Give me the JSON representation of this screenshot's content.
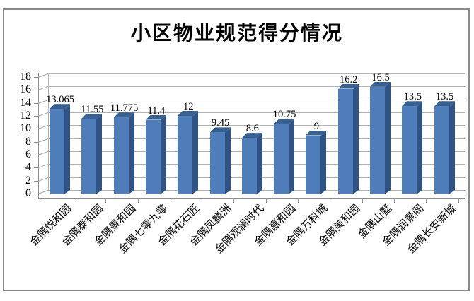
{
  "window": {
    "background_color": "#ffffff",
    "frame_border_color": "#8a8a8a"
  },
  "chart_data": {
    "type": "bar",
    "style": "3d-column",
    "title": "小区物业规范得分情况",
    "xlabel": "",
    "ylabel": "",
    "categories": [
      "金隅悦和园",
      "金隅泰和园",
      "金隅景和园",
      "金隅七零九零",
      "金隅花石匠",
      "金隅凤麟洲",
      "金隅观澜时代",
      "金隅嘉和园",
      "金隅万科城",
      "金隅美和园",
      "金隅山墅",
      "金隅润景阁",
      "金隅长安新城"
    ],
    "values": [
      13.065,
      11.55,
      11.775,
      11.4,
      12,
      9.45,
      8.6,
      10.75,
      9,
      16.2,
      16.5,
      13.5,
      13.5
    ],
    "value_labels": [
      "13.065",
      "11.55",
      "11.775",
      "11.4",
      "12",
      "9.45",
      "8.6",
      "10.75",
      "9",
      "16.2",
      "16.5",
      "13.5",
      "13.5"
    ],
    "ylim": [
      0,
      18
    ],
    "ytick_step": 2,
    "ytick_labels": [
      "0",
      "2",
      "4",
      "6",
      "8",
      "10",
      "12",
      "14",
      "16",
      "18"
    ],
    "grid": true,
    "legend": false,
    "data_labels_visible": true,
    "x_labels_rotation_deg": 45,
    "colors": {
      "bar_front": "#4e7db9",
      "bar_side": "#2f5385",
      "bar_top": "#39618f",
      "gridline": "#b2b2b2",
      "axis": "#8c8c8c",
      "text": "#000000"
    }
  }
}
